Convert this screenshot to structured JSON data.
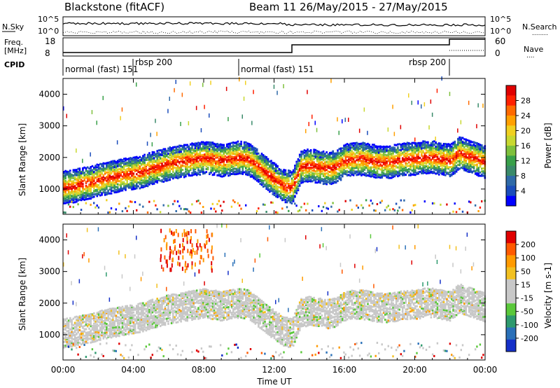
{
  "header": {
    "station": "Blackstone (fitACF)",
    "beam_date": "Beam 11 26/May/2015 - 27/May/2015"
  },
  "top_panel": {
    "left_label": "N.Sky",
    "left_ticks": [
      "10^5",
      "10^0"
    ],
    "right_ticks": [
      "10^5",
      "10^0"
    ],
    "right_label": "N.Search",
    "legend_dots": "........"
  },
  "freq_panel": {
    "left_label_line1": "Freq.",
    "left_label_line2": "[MHz]",
    "left_ticks": [
      "18",
      "8"
    ],
    "right_ticks": [
      "60",
      "0"
    ],
    "right_label": "Nave",
    "legend_dots": "...."
  },
  "cpid": {
    "label": "CPID",
    "segments": [
      "normal (fast) 151",
      "rbsp 200",
      "normal (fast) 151",
      "rbsp 200"
    ]
  },
  "chart_data": [
    {
      "type": "heatmap",
      "title": "",
      "ylabel": "Slant Range [km]",
      "xlabel": "",
      "x_ticks": [
        "00:00",
        "04:00",
        "08:00",
        "12:00",
        "16:00",
        "20:00",
        "00:00"
      ],
      "y_ticks": [
        "1000",
        "2000",
        "3000",
        "4000"
      ],
      "ylim": [
        200,
        4500
      ],
      "colorbar": {
        "label": "Power [dB]",
        "ticks": [
          "4",
          "8",
          "12",
          "16",
          "20",
          "24",
          "28"
        ],
        "colors": [
          "#0000ff",
          "#1b4dbb",
          "#2f6aa8",
          "#3a8a6a",
          "#39a04a",
          "#7ec03c",
          "#c8d830",
          "#f0d020",
          "#ffa000",
          "#ff6a00",
          "#ff2000",
          "#e00000"
        ]
      },
      "scatter_layer": {
        "hour": [
          0.0,
          0.5,
          1.0,
          1.5,
          2.0,
          2.5,
          3.0,
          3.5,
          4.0,
          4.5,
          5.0,
          5.5,
          6.0,
          6.5,
          7.0,
          7.5,
          8.0,
          8.5,
          9.0,
          9.5,
          10.0,
          10.5,
          11.0,
          11.5,
          12.0,
          12.5,
          13.0,
          13.5,
          14.0,
          14.5,
          15.0,
          15.5,
          16.0,
          16.5,
          17.0,
          17.5,
          18.0,
          18.5,
          19.0,
          19.5,
          20.0,
          20.5,
          21.0,
          21.5,
          22.0,
          22.5,
          23.0,
          23.5,
          24.0
        ],
        "center_km": [
          1050,
          1080,
          1150,
          1200,
          1280,
          1350,
          1400,
          1450,
          1500,
          1550,
          1650,
          1720,
          1800,
          1850,
          1900,
          1950,
          1980,
          1950,
          1900,
          1950,
          2000,
          1950,
          1750,
          1500,
          1300,
          1100,
          1050,
          1700,
          1750,
          1700,
          1650,
          1700,
          1900,
          1950,
          1950,
          1900,
          1850,
          1850,
          1900,
          1950,
          1950,
          2000,
          2000,
          1950,
          1900,
          2150,
          2050,
          1950,
          1850
        ]
      }
    },
    {
      "type": "heatmap",
      "title": "",
      "ylabel": "Slant Range [km]",
      "xlabel": "Time UT",
      "x_ticks": [
        "00:00",
        "04:00",
        "08:00",
        "12:00",
        "16:00",
        "20:00",
        "00:00"
      ],
      "y_ticks": [
        "1000",
        "2000",
        "3000",
        "4000"
      ],
      "ylim": [
        200,
        4500
      ],
      "colorbar": {
        "label": "Velocity [m s-1]",
        "ticks": [
          "200",
          "100",
          "50",
          "15",
          "-15",
          "-50",
          "-100",
          "-200"
        ],
        "colors": [
          "#1530c8",
          "#2a70b8",
          "#2e9a6e",
          "#5ac83a",
          "#c8c8c8",
          "#c8c8c8",
          "#f2c020",
          "#ff9a00",
          "#ff5a00",
          "#e00000"
        ]
      }
    }
  ]
}
